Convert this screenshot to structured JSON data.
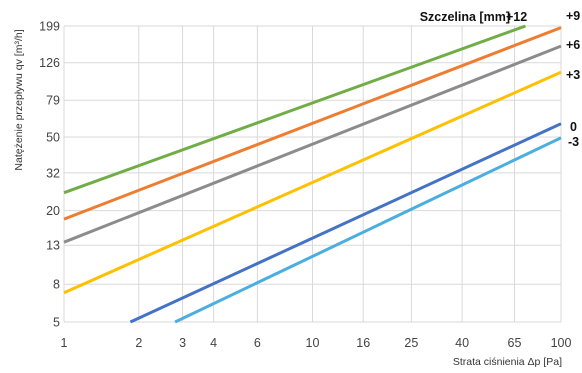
{
  "chart_data": {
    "type": "line",
    "x_scale": "log",
    "y_scale": "log",
    "xlabel": "Strata ciśnienia Δp [Pa]",
    "ylabel": "Natężenie przepływu qv [m³/h]",
    "legend_title": "Szczelina [mm]",
    "x_ticks": [
      1,
      2,
      3,
      4,
      6,
      10,
      16,
      25,
      40,
      65,
      100
    ],
    "y_ticks": [
      5,
      8,
      13,
      20,
      32,
      50,
      79,
      126,
      199
    ],
    "xlim": [
      1,
      100
    ],
    "ylim": [
      5,
      199
    ],
    "grid": true,
    "series": [
      {
        "name": "+12",
        "color": "#70ad47",
        "x": [
          1,
          72
        ],
        "y": [
          25,
          199
        ]
      },
      {
        "name": "+9",
        "color": "#ed7d31",
        "x": [
          1,
          100
        ],
        "y": [
          18,
          195
        ]
      },
      {
        "name": "+6",
        "color": "#8c8c8c",
        "x": [
          1,
          100
        ],
        "y": [
          13.5,
          155
        ]
      },
      {
        "name": "+3",
        "color": "#ffc000",
        "x": [
          1,
          100
        ],
        "y": [
          7.2,
          112
        ]
      },
      {
        "name": "0",
        "color": "#4472c4",
        "x": [
          1.85,
          100
        ],
        "y": [
          5,
          59
        ]
      },
      {
        "name": "-3",
        "color": "#4baee0",
        "x": [
          2.8,
          100
        ],
        "y": [
          5,
          49.5
        ]
      }
    ]
  }
}
